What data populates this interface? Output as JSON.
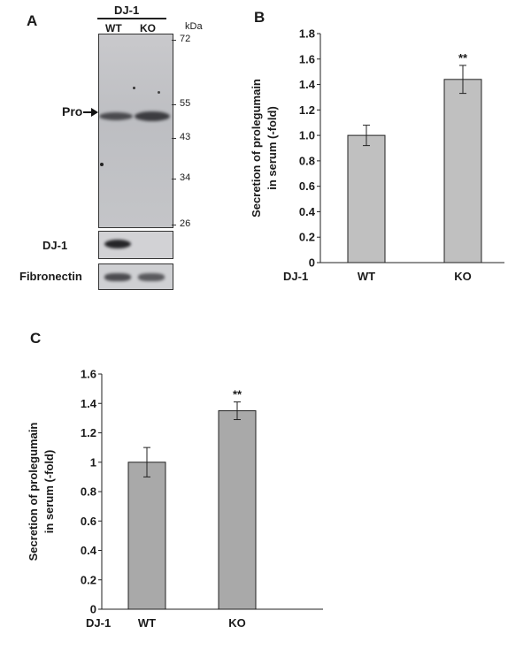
{
  "panel_a": {
    "letter": "A",
    "group_label": "DJ-1",
    "lanes": [
      "WT",
      "KO"
    ],
    "unit_label": "kDa",
    "markers": [
      "72",
      "55",
      "43",
      "34",
      "26"
    ],
    "band_label": "Pro",
    "strip_labels": [
      "DJ-1",
      "Fibronectin"
    ]
  },
  "panel_b": {
    "letter": "B",
    "group_label": "DJ-1",
    "ylabel": "Secretion of prolegumain in serum (-fold)",
    "ylabel_lines": [
      "Secretion of prolegumain",
      "in serum (-fold)"
    ]
  },
  "panel_c": {
    "letter": "C",
    "group_label": "DJ-1",
    "ylabel": "Secretion of prolegumain in serum (-fold)",
    "ylabel_lines": [
      "Secretion of prolegumain",
      "in serum (-fold)"
    ]
  },
  "chart_data": [
    {
      "type": "bar",
      "panel": "B",
      "categories": [
        "WT",
        "KO"
      ],
      "values": [
        1.0,
        1.44
      ],
      "errors": [
        0.08,
        0.11
      ],
      "annotations": [
        "",
        "**"
      ],
      "ylabel": "Secretion of prolegumain in serum (-fold)",
      "yticks": [
        "0",
        "0.2",
        "0.4",
        "0.6",
        "0.8",
        "1.0",
        "1.2",
        "1.4",
        "1.6",
        "1.8"
      ],
      "ylim": [
        0,
        1.8
      ],
      "bar_color": "#c0c0c0"
    },
    {
      "type": "bar",
      "panel": "C",
      "categories": [
        "WT",
        "KO"
      ],
      "values": [
        1.0,
        1.35
      ],
      "errors": [
        0.1,
        0.06
      ],
      "annotations": [
        "",
        "**"
      ],
      "ylabel": "Secretion of prolegumain in serum (-fold)",
      "yticks": [
        "0",
        "0.2",
        "0.4",
        "0.6",
        "0.8",
        "1",
        "1.2",
        "1.4",
        "1.6"
      ],
      "ylim": [
        0,
        1.6
      ],
      "bar_color": "#a9a9a9"
    }
  ]
}
